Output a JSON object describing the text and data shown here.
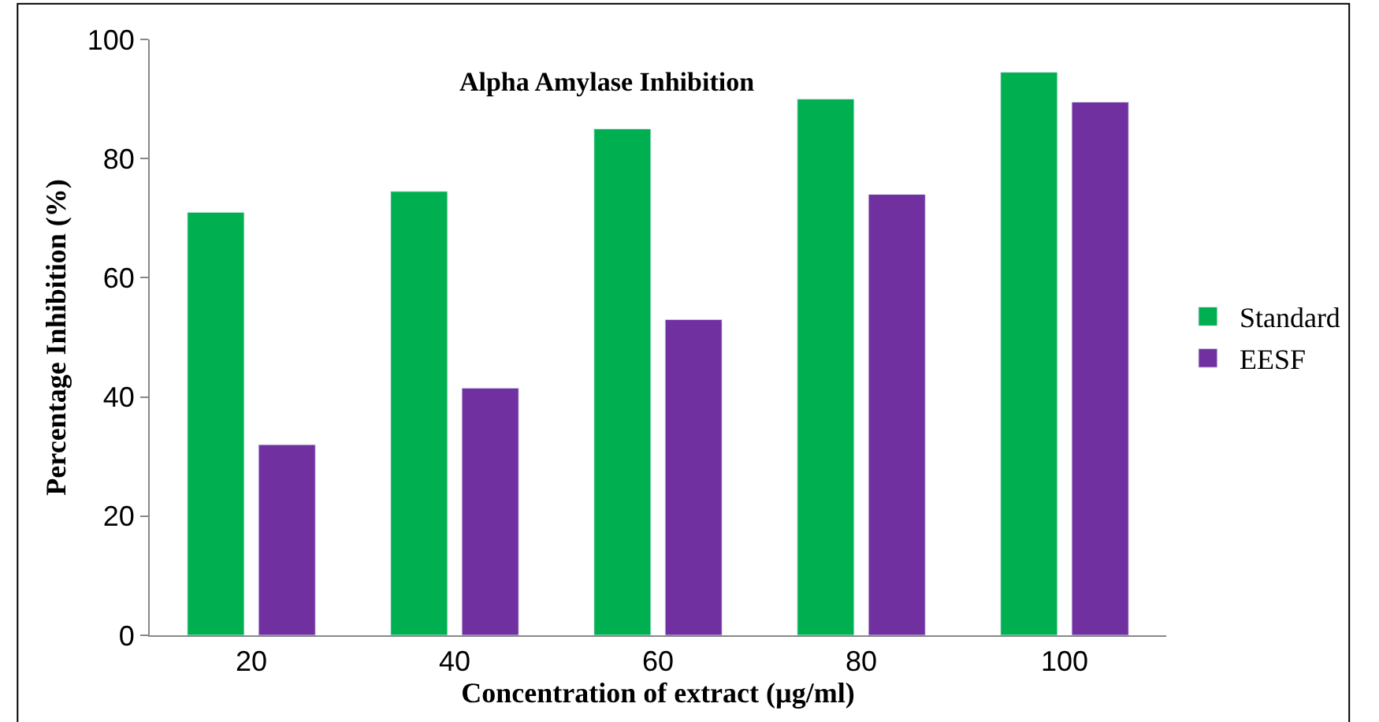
{
  "chart_data": {
    "type": "bar",
    "title": "Alpha Amylase Inhibition",
    "xlabel": "Concentration of extract (µg/ml)",
    "ylabel": "Percentage Inhibition (%)",
    "categories": [
      "20",
      "40",
      "60",
      "80",
      "100"
    ],
    "series": [
      {
        "name": "Standard",
        "color": "#00b050",
        "values": [
          71,
          74.5,
          85,
          90,
          94.5
        ]
      },
      {
        "name": "EESF",
        "color": "#7030a0",
        "values": [
          32,
          41.5,
          53,
          74,
          89.5
        ]
      }
    ],
    "ylim": [
      0,
      100
    ],
    "yticks": [
      0,
      20,
      40,
      60,
      80,
      100
    ],
    "legend": "right"
  }
}
